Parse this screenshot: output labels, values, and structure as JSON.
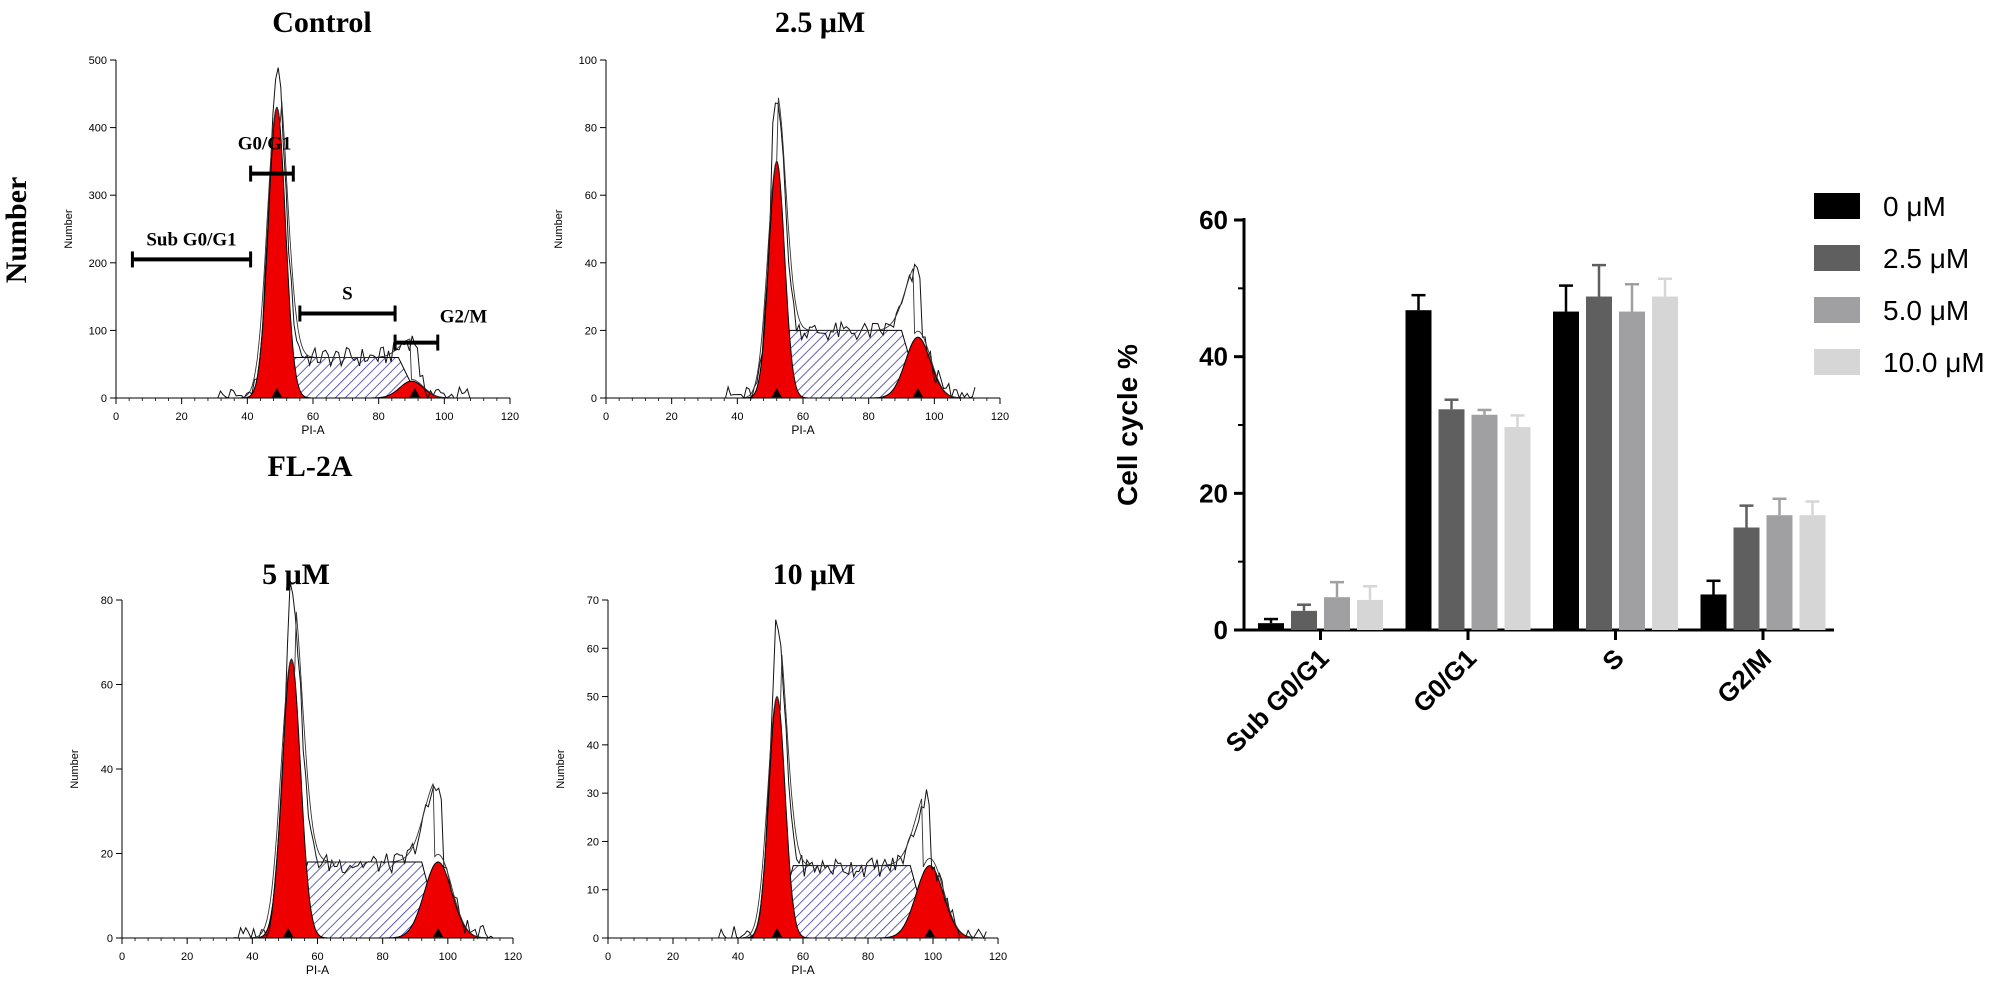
{
  "figure": {
    "y_axis_big_label": "Number",
    "x_axis_big_label": "FL-2A"
  },
  "histograms": [
    {
      "title": "Control",
      "xlabel": "PI-A",
      "ylabel": "Number",
      "ymax": 500,
      "yticks": [
        0,
        100,
        200,
        300,
        400,
        500
      ],
      "xticks": [
        0,
        20,
        40,
        60,
        80,
        100,
        120
      ],
      "g1_mean": 49,
      "g1_sd": 2.6,
      "g1_height": 430,
      "g2_mean": 90,
      "g2_sd": 3.6,
      "g2_height": 25,
      "s_start": 54,
      "s_end": 86,
      "s_height": 60,
      "envelope_peak": 480,
      "markers": [
        49,
        91
      ],
      "gates": [
        {
          "label": "Sub G0/G1",
          "x1": 5,
          "x2": 41,
          "level": 205
        },
        {
          "label": "G0/G1",
          "x1": 41,
          "x2": 54,
          "level": 332
        },
        {
          "label": "S",
          "x1": 56,
          "x2": 85,
          "level": 125
        },
        {
          "label": "G2/M",
          "x1": 85,
          "x2": 98,
          "level": 82
        }
      ]
    },
    {
      "title": "2.5 μM",
      "xlabel": "PI-A",
      "ylabel": "Number",
      "ymax": 100,
      "yticks": [
        0,
        20,
        40,
        60,
        80,
        100
      ],
      "xticks": [
        0,
        20,
        40,
        60,
        80,
        100,
        120
      ],
      "g1_mean": 52,
      "g1_sd": 2.4,
      "g1_height": 70,
      "g2_mean": 95,
      "g2_sd": 3.8,
      "g2_height": 18,
      "s_start": 56,
      "s_end": 90,
      "s_height": 20,
      "envelope_peak": 91,
      "markers": [
        52,
        95
      ],
      "gates": []
    },
    {
      "title": "5 μM",
      "xlabel": "PI-A",
      "ylabel": "Number",
      "ymax": 80,
      "yticks": [
        0,
        20,
        40,
        60,
        80
      ],
      "xticks": [
        0,
        20,
        40,
        60,
        80,
        100,
        120
      ],
      "g1_mean": 52,
      "g1_sd": 2.8,
      "g1_height": 66,
      "g2_mean": 97,
      "g2_sd": 4.2,
      "g2_height": 18,
      "s_start": 57,
      "s_end": 92,
      "s_height": 18,
      "envelope_peak": 79,
      "markers": [
        51,
        97
      ],
      "gates": []
    },
    {
      "title": "10 μM",
      "xlabel": "PI-A",
      "ylabel": "Number",
      "ymax": 70,
      "yticks": [
        0,
        10,
        20,
        30,
        40,
        50,
        60,
        70
      ],
      "xticks": [
        0,
        20,
        40,
        60,
        80,
        100,
        120
      ],
      "g1_mean": 52,
      "g1_sd": 2.5,
      "g1_height": 50,
      "g2_mean": 99,
      "g2_sd": 4.2,
      "g2_height": 15,
      "s_start": 57,
      "s_end": 93,
      "s_height": 15,
      "envelope_peak": 62,
      "markers": [
        52,
        99
      ],
      "gates": []
    }
  ],
  "chart_data": {
    "type": "bar",
    "title": "",
    "xlabel": "",
    "ylabel": "Cell cycle %",
    "ylim": [
      0,
      60
    ],
    "yticks": [
      0,
      20,
      40,
      60
    ],
    "categories": [
      "Sub G0/G1",
      "G0/G1",
      "S",
      "G2/M"
    ],
    "series": [
      {
        "name": "0 μM",
        "color": "#000000",
        "values": [
          1.0,
          46.8,
          46.6,
          5.2
        ],
        "errors": [
          0.6,
          2.2,
          3.8,
          2.0
        ]
      },
      {
        "name": "2.5 μM",
        "color": "#5f5f5f",
        "values": [
          2.8,
          32.3,
          48.8,
          15.0
        ],
        "errors": [
          0.9,
          1.4,
          4.6,
          3.2
        ]
      },
      {
        "name": "5.0 μM",
        "color": "#a0a0a2",
        "values": [
          4.8,
          31.5,
          46.6,
          16.8
        ],
        "errors": [
          2.2,
          0.7,
          4.0,
          2.4
        ]
      },
      {
        "name": "10.0 μM",
        "color": "#d6d6d6",
        "values": [
          4.4,
          29.7,
          48.8,
          16.8
        ],
        "errors": [
          2.0,
          1.7,
          2.6,
          2.0
        ]
      }
    ]
  },
  "colors": {
    "red_peak": "#ee0000",
    "hatch": "#3a3aa8",
    "axis": "#000000"
  }
}
